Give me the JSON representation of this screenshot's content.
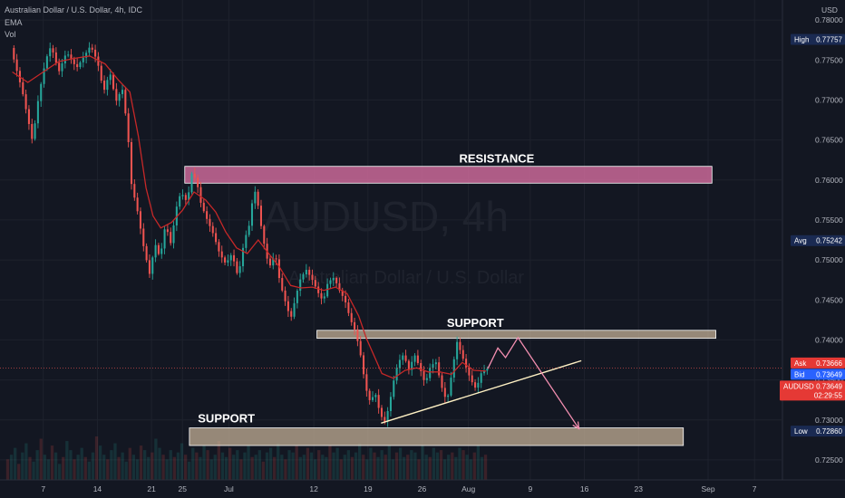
{
  "header": {
    "title": "Australian Dollar / U.S. Dollar, 4h, IDC",
    "line2": "EMA",
    "line3": "Vol"
  },
  "watermark": {
    "symbol": "AUDUSD, 4h",
    "name": "Australian Dollar / U.S. Dollar"
  },
  "currency": "USD",
  "colors": {
    "background": "#131722",
    "bull": "#26a69a",
    "bear": "#ef5350",
    "ema": "#c62828",
    "resistance": "#d16b9c",
    "support": "#c9b49a",
    "trendline": "#fff1c4",
    "projection": "#f48fb1",
    "tag_navy": "#1a2a52",
    "tag_red": "#e53935",
    "tag_blue": "#2962ff"
  },
  "chart_data": {
    "type": "line",
    "title": "Australian Dollar / U.S. Dollar, 4h, IDC",
    "ylim": [
      0.7225,
      0.7825
    ],
    "y_ticks": [
      "0.78000",
      "0.77500",
      "0.77000",
      "0.76500",
      "0.76000",
      "0.75500",
      "0.75000",
      "0.74500",
      "0.74000",
      "0.73500",
      "0.73000",
      "0.72500"
    ],
    "x_ticks": [
      {
        "label": "7",
        "day": 7
      },
      {
        "label": "14",
        "day": 14
      },
      {
        "label": "21",
        "day": 21
      },
      {
        "label": "25",
        "day": 25
      },
      {
        "label": "Jul",
        "day": 31
      },
      {
        "label": "12",
        "day": 42
      },
      {
        "label": "19",
        "day": 49
      },
      {
        "label": "26",
        "day": 56
      },
      {
        "label": "Aug",
        "day": 62
      },
      {
        "label": "9",
        "day": 70
      },
      {
        "label": "16",
        "day": 77
      },
      {
        "label": "23",
        "day": 84
      },
      {
        "label": "Sep",
        "day": 93
      },
      {
        "label": "7",
        "day": 99
      }
    ],
    "price_path": [
      [
        3.0,
        0.7765
      ],
      [
        4.5,
        0.771
      ],
      [
        5.8,
        0.7648
      ],
      [
        6.6,
        0.7705
      ],
      [
        7.5,
        0.775
      ],
      [
        8.2,
        0.7768
      ],
      [
        9.2,
        0.7735
      ],
      [
        10.2,
        0.776
      ],
      [
        11.5,
        0.774
      ],
      [
        12.5,
        0.7755
      ],
      [
        13.3,
        0.7768
      ],
      [
        14.2,
        0.7748
      ],
      [
        15.0,
        0.771
      ],
      [
        15.8,
        0.7735
      ],
      [
        16.6,
        0.7698
      ],
      [
        17.4,
        0.7715
      ],
      [
        18.1,
        0.7662
      ],
      [
        18.6,
        0.7595
      ],
      [
        19.4,
        0.756
      ],
      [
        20.2,
        0.7515
      ],
      [
        21.0,
        0.748
      ],
      [
        21.6,
        0.7522
      ],
      [
        22.3,
        0.7502
      ],
      [
        23.0,
        0.7545
      ],
      [
        23.7,
        0.752
      ],
      [
        24.4,
        0.7565
      ],
      [
        25.0,
        0.7585
      ],
      [
        25.8,
        0.7572
      ],
      [
        26.4,
        0.7608
      ],
      [
        27.0,
        0.76
      ],
      [
        27.6,
        0.757
      ],
      [
        28.4,
        0.755
      ],
      [
        29.2,
        0.7532
      ],
      [
        30.0,
        0.7508
      ],
      [
        30.8,
        0.7495
      ],
      [
        31.6,
        0.7508
      ],
      [
        32.4,
        0.7478
      ],
      [
        33.2,
        0.7525
      ],
      [
        33.8,
        0.7542
      ],
      [
        34.3,
        0.7578
      ],
      [
        34.7,
        0.7588
      ],
      [
        35.2,
        0.7552
      ],
      [
        35.8,
        0.7518
      ],
      [
        36.4,
        0.749
      ],
      [
        37.2,
        0.7508
      ],
      [
        37.8,
        0.7472
      ],
      [
        38.5,
        0.7448
      ],
      [
        39.2,
        0.7426
      ],
      [
        39.8,
        0.7452
      ],
      [
        40.4,
        0.7475
      ],
      [
        41.2,
        0.7488
      ],
      [
        42.0,
        0.7475
      ],
      [
        42.8,
        0.7458
      ],
      [
        43.4,
        0.7448
      ],
      [
        44.0,
        0.7472
      ],
      [
        44.8,
        0.7478
      ],
      [
        45.6,
        0.746
      ],
      [
        46.2,
        0.745
      ],
      [
        46.9,
        0.7426
      ],
      [
        47.6,
        0.741
      ],
      [
        48.3,
        0.7378
      ],
      [
        48.9,
        0.734
      ],
      [
        49.5,
        0.7322
      ],
      [
        50.1,
        0.7335
      ],
      [
        50.7,
        0.731
      ],
      [
        51.3,
        0.7296
      ],
      [
        51.9,
        0.7316
      ],
      [
        52.5,
        0.7348
      ],
      [
        53.1,
        0.7372
      ],
      [
        53.8,
        0.7382
      ],
      [
        54.5,
        0.7362
      ],
      [
        55.2,
        0.7382
      ],
      [
        55.9,
        0.7365
      ],
      [
        56.6,
        0.7345
      ],
      [
        57.3,
        0.7368
      ],
      [
        58.0,
        0.7372
      ],
      [
        58.7,
        0.7342
      ],
      [
        59.4,
        0.7322
      ],
      [
        60.1,
        0.7362
      ],
      [
        60.7,
        0.7398
      ],
      [
        61.2,
        0.7385
      ],
      [
        61.8,
        0.7368
      ],
      [
        62.5,
        0.735
      ],
      [
        63.2,
        0.7338
      ],
      [
        63.8,
        0.7358
      ],
      [
        64.5,
        0.7364
      ]
    ],
    "ema_path": [
      [
        3.0,
        0.7735
      ],
      [
        5.0,
        0.7722
      ],
      [
        7.0,
        0.7735
      ],
      [
        9.0,
        0.7748
      ],
      [
        11.0,
        0.7752
      ],
      [
        13.0,
        0.7755
      ],
      [
        15.0,
        0.7745
      ],
      [
        16.7,
        0.7725
      ],
      [
        18.2,
        0.771
      ],
      [
        19.3,
        0.7655
      ],
      [
        20.3,
        0.759
      ],
      [
        21.2,
        0.7555
      ],
      [
        22.2,
        0.754
      ],
      [
        23.6,
        0.7547
      ],
      [
        25.0,
        0.7562
      ],
      [
        26.5,
        0.7585
      ],
      [
        28.0,
        0.7575
      ],
      [
        29.3,
        0.756
      ],
      [
        30.6,
        0.7535
      ],
      [
        32.0,
        0.7515
      ],
      [
        33.4,
        0.7508
      ],
      [
        34.8,
        0.7525
      ],
      [
        36.0,
        0.751
      ],
      [
        37.5,
        0.7492
      ],
      [
        39.0,
        0.7468
      ],
      [
        40.3,
        0.7465
      ],
      [
        41.8,
        0.7466
      ],
      [
        43.3,
        0.7462
      ],
      [
        44.8,
        0.7466
      ],
      [
        46.3,
        0.7458
      ],
      [
        47.8,
        0.743
      ],
      [
        48.8,
        0.7402
      ],
      [
        49.8,
        0.738
      ],
      [
        50.8,
        0.7358
      ],
      [
        52.3,
        0.7352
      ],
      [
        53.8,
        0.7362
      ],
      [
        55.3,
        0.7365
      ],
      [
        56.8,
        0.736
      ],
      [
        58.3,
        0.736
      ],
      [
        59.8,
        0.7357
      ],
      [
        61.2,
        0.7372
      ],
      [
        62.7,
        0.7362
      ],
      [
        64.3,
        0.7361
      ]
    ],
    "volume": [
      9,
      11,
      14,
      7,
      12,
      16,
      10,
      8,
      13,
      18,
      11,
      9,
      15,
      12,
      7,
      10,
      17,
      13,
      9,
      11,
      14,
      10,
      8,
      12,
      19,
      15,
      11,
      9,
      13,
      16,
      10,
      12,
      8,
      14,
      11,
      9,
      15,
      13,
      10,
      12,
      18,
      14,
      11,
      9,
      13,
      10,
      12,
      16,
      11,
      8,
      14,
      12,
      10,
      15,
      13,
      9,
      11,
      17,
      12,
      10,
      14,
      11,
      13,
      9,
      12,
      15,
      10,
      11,
      13,
      8,
      12,
      14,
      10,
      16,
      11,
      9,
      13,
      12,
      15,
      10,
      11,
      14,
      12,
      9,
      13,
      11,
      10,
      15,
      12,
      14,
      9,
      11,
      13,
      10,
      12,
      16,
      11,
      9,
      14,
      12,
      10,
      13,
      11,
      15,
      9,
      12,
      14,
      10,
      11,
      13,
      12,
      9,
      15,
      11,
      10,
      14,
      12,
      13,
      9,
      11,
      12,
      10,
      14,
      13,
      11,
      9,
      12,
      15,
      10,
      11
    ],
    "zones": [
      {
        "name": "resistance",
        "label": "RESISTANCE",
        "y_top": 0.7617,
        "y_bottom": 0.7596,
        "x_start": 25.3,
        "x_end": 93.5
      },
      {
        "name": "support-upper",
        "label": "SUPPORT",
        "y_top": 0.7412,
        "y_bottom": 0.7402,
        "x_start": 42.4,
        "x_end": 94.0
      },
      {
        "name": "support-lower",
        "label": "SUPPORT",
        "y_top": 0.729,
        "y_bottom": 0.7268,
        "x_start": 25.9,
        "x_end": 89.8
      }
    ],
    "trendline": [
      [
        50.7,
        0.7296
      ],
      [
        76.6,
        0.7374
      ]
    ],
    "projection": [
      [
        64.5,
        0.7364
      ],
      [
        65.8,
        0.739
      ],
      [
        66.8,
        0.7378
      ],
      [
        68.4,
        0.7403
      ],
      [
        76.3,
        0.7289
      ]
    ],
    "tags": [
      {
        "name": "high",
        "label": "High",
        "value": "0.77757",
        "y": 0.77757,
        "style": "navy"
      },
      {
        "name": "avg",
        "label": "Avg",
        "value": "0.75242",
        "y": 0.75242,
        "style": "navy"
      },
      {
        "name": "ask",
        "label": "Ask",
        "value": "0.73666",
        "y": 0.73666,
        "style": "red"
      },
      {
        "name": "bid",
        "label": "Bid",
        "value": "0.73649",
        "y": 0.73649,
        "style": "blue"
      },
      {
        "name": "last",
        "label": "AUDUSD",
        "value": "0.73649",
        "countdown": "02:29:55",
        "y": 0.73649,
        "style": "red"
      },
      {
        "name": "low",
        "label": "Low",
        "value": "0.72860",
        "y": 0.7286,
        "style": "navy"
      }
    ]
  }
}
